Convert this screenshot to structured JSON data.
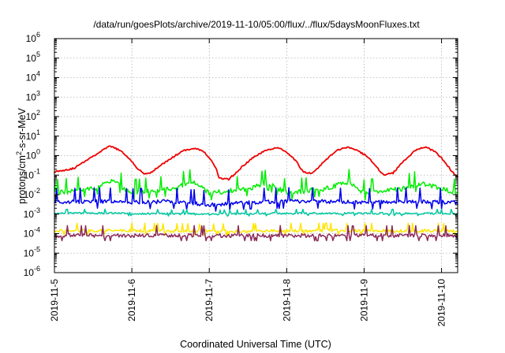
{
  "chart_data": {
    "type": "line",
    "title": "/data/run/goesPlots/archive/2019-11-10/05:00/flux/../flux/5daysMoonFluxes.txt",
    "xlabel": "Coordinated Universal Time (UTC)",
    "ylabel": "protons/cm²-s-sr-MeV",
    "ylabel_parts": {
      "before": "protons/cm",
      "sup": "2",
      "after": "-s-sr-MeV"
    },
    "yscale": "log",
    "ylim": [
      1e-06,
      1000000
    ],
    "xlim": [
      "2019-11-05T00:00",
      "2019-11-10T05:00"
    ],
    "grid": true,
    "x_ticks": [
      "2019-11-5",
      "2019-11-6",
      "2019-11-7",
      "2019-11-8",
      "2019-11-9",
      "2019-11-10"
    ],
    "y_ticks": [
      {
        "base": "10",
        "exp": "-6"
      },
      {
        "base": "10",
        "exp": "-5"
      },
      {
        "base": "10",
        "exp": "-4"
      },
      {
        "base": "10",
        "exp": "-3"
      },
      {
        "base": "10",
        "exp": "-2"
      },
      {
        "base": "10",
        "exp": "-1"
      },
      {
        "base": "10",
        "exp": "0"
      },
      {
        "base": "10",
        "exp": "1"
      },
      {
        "base": "10",
        "exp": "2"
      },
      {
        "base": "10",
        "exp": "3"
      },
      {
        "base": "10",
        "exp": "4"
      },
      {
        "base": "10",
        "exp": "5"
      },
      {
        "base": "10",
        "exp": "6"
      }
    ],
    "series": [
      {
        "color": "#ee0000",
        "values": [
          {
            "x": "2019-11-05T00:00",
            "y": 0.15
          },
          {
            "x": "2019-11-05T06:00",
            "y": 0.22
          },
          {
            "x": "2019-11-05T10:00",
            "y": 0.6
          },
          {
            "x": "2019-11-05T14:00",
            "y": 1.5
          },
          {
            "x": "2019-11-05T17:00",
            "y": 3.0
          },
          {
            "x": "2019-11-05T19:00",
            "y": 2.4
          },
          {
            "x": "2019-11-05T21:00",
            "y": 1.5
          },
          {
            "x": "2019-11-06T00:00",
            "y": 0.5
          },
          {
            "x": "2019-11-06T02:00",
            "y": 0.2
          },
          {
            "x": "2019-11-06T04:00",
            "y": 0.11
          },
          {
            "x": "2019-11-06T06:00",
            "y": 0.14
          },
          {
            "x": "2019-11-06T08:00",
            "y": 0.25
          },
          {
            "x": "2019-11-06T12:00",
            "y": 0.7
          },
          {
            "x": "2019-11-06T16:00",
            "y": 1.8
          },
          {
            "x": "2019-11-06T19:00",
            "y": 2.4
          },
          {
            "x": "2019-11-06T22:00",
            "y": 1.8
          },
          {
            "x": "2019-11-07T00:00",
            "y": 0.8
          },
          {
            "x": "2019-11-07T02:00",
            "y": 0.25
          },
          {
            "x": "2019-11-07T03:00",
            "y": 0.07
          },
          {
            "x": "2019-11-07T06:00",
            "y": 0.06
          },
          {
            "x": "2019-11-07T08:00",
            "y": 0.12
          },
          {
            "x": "2019-11-07T10:00",
            "y": 0.25
          },
          {
            "x": "2019-11-07T14:00",
            "y": 0.9
          },
          {
            "x": "2019-11-07T18:00",
            "y": 2.0
          },
          {
            "x": "2019-11-07T21:00",
            "y": 2.6
          },
          {
            "x": "2019-11-08T00:00",
            "y": 1.5
          },
          {
            "x": "2019-11-08T03:00",
            "y": 0.5
          },
          {
            "x": "2019-11-08T05:00",
            "y": 0.15
          },
          {
            "x": "2019-11-08T08:00",
            "y": 0.12
          },
          {
            "x": "2019-11-08T12:00",
            "y": 0.6
          },
          {
            "x": "2019-11-08T16:00",
            "y": 2.0
          },
          {
            "x": "2019-11-08T19:00",
            "y": 2.8
          },
          {
            "x": "2019-11-08T22:00",
            "y": 1.8
          },
          {
            "x": "2019-11-09T01:00",
            "y": 0.9
          },
          {
            "x": "2019-11-09T04:00",
            "y": 0.25
          },
          {
            "x": "2019-11-09T06:00",
            "y": 0.1
          },
          {
            "x": "2019-11-09T09:00",
            "y": 0.13
          },
          {
            "x": "2019-11-09T13:00",
            "y": 0.7
          },
          {
            "x": "2019-11-09T16:00",
            "y": 1.9
          },
          {
            "x": "2019-11-09T19:00",
            "y": 2.8
          },
          {
            "x": "2019-11-09T22:00",
            "y": 1.6
          },
          {
            "x": "2019-11-10T01:00",
            "y": 0.5
          },
          {
            "x": "2019-11-10T03:00",
            "y": 0.17
          },
          {
            "x": "2019-11-10T05:00",
            "y": 0.08
          }
        ]
      },
      {
        "color": "#00ee00",
        "values": [
          {
            "x": "2019-11-05T00:00",
            "y": 0.012
          },
          {
            "x": "2019-11-05T12:00",
            "y": 0.02
          },
          {
            "x": "2019-11-05T18:00",
            "y": 0.05
          },
          {
            "x": "2019-11-06T00:00",
            "y": 0.012
          },
          {
            "x": "2019-11-06T12:00",
            "y": 0.02
          },
          {
            "x": "2019-11-06T19:00",
            "y": 0.045
          },
          {
            "x": "2019-11-07T00:00",
            "y": 0.012
          },
          {
            "x": "2019-11-07T12:00",
            "y": 0.02
          },
          {
            "x": "2019-11-07T18:00",
            "y": 0.04
          },
          {
            "x": "2019-11-08T00:00",
            "y": 0.012
          },
          {
            "x": "2019-11-08T12:00",
            "y": 0.02
          },
          {
            "x": "2019-11-08T19:00",
            "y": 0.045
          },
          {
            "x": "2019-11-09T00:00",
            "y": 0.012
          },
          {
            "x": "2019-11-09T12:00",
            "y": 0.02
          },
          {
            "x": "2019-11-09T18:00",
            "y": 0.04
          },
          {
            "x": "2019-11-10T05:00",
            "y": 0.012
          }
        ]
      },
      {
        "color": "#0000ee",
        "values": [
          {
            "x": "2019-11-05T00:00",
            "y": 0.004
          },
          {
            "x": "2019-11-05T12:00",
            "y": 0.0045
          },
          {
            "x": "2019-11-06T00:00",
            "y": 0.004
          },
          {
            "x": "2019-11-06T12:00",
            "y": 0.0045
          },
          {
            "x": "2019-11-07T00:00",
            "y": 0.003
          },
          {
            "x": "2019-11-07T12:00",
            "y": 0.004
          },
          {
            "x": "2019-11-08T00:00",
            "y": 0.0045
          },
          {
            "x": "2019-11-08T12:00",
            "y": 0.0045
          },
          {
            "x": "2019-11-09T00:00",
            "y": 0.004
          },
          {
            "x": "2019-11-09T12:00",
            "y": 0.0045
          },
          {
            "x": "2019-11-10T05:00",
            "y": 0.004
          }
        ]
      },
      {
        "color": "#00c8a0",
        "values": [
          {
            "x": "2019-11-05T00:00",
            "y": 0.0011
          },
          {
            "x": "2019-11-06T00:00",
            "y": 0.0011
          },
          {
            "x": "2019-11-07T00:00",
            "y": 0.001
          },
          {
            "x": "2019-11-08T00:00",
            "y": 0.0011
          },
          {
            "x": "2019-11-09T00:00",
            "y": 0.0011
          },
          {
            "x": "2019-11-10T05:00",
            "y": 0.0011
          }
        ]
      },
      {
        "color": "#ffe600",
        "values": [
          {
            "x": "2019-11-05T00:00",
            "y": 0.00014
          },
          {
            "x": "2019-11-06T00:00",
            "y": 0.00014
          },
          {
            "x": "2019-11-07T00:00",
            "y": 0.00013
          },
          {
            "x": "2019-11-08T00:00",
            "y": 0.00014
          },
          {
            "x": "2019-11-09T00:00",
            "y": 0.00014
          },
          {
            "x": "2019-11-10T05:00",
            "y": 0.00014
          }
        ]
      },
      {
        "color": "#8b2a5a",
        "values": [
          {
            "x": "2019-11-05T00:00",
            "y": 8e-05
          },
          {
            "x": "2019-11-06T00:00",
            "y": 8e-05
          },
          {
            "x": "2019-11-07T00:00",
            "y": 8e-05
          },
          {
            "x": "2019-11-08T00:00",
            "y": 8e-05
          },
          {
            "x": "2019-11-09T00:00",
            "y": 8e-05
          },
          {
            "x": "2019-11-10T05:00",
            "y": 8e-05
          }
        ]
      }
    ]
  }
}
